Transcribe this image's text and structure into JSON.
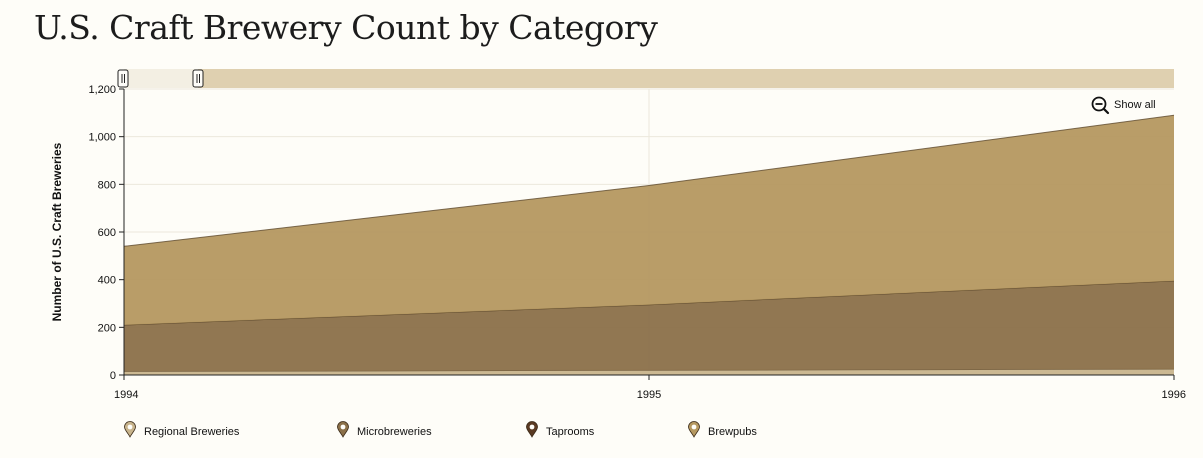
{
  "page": {
    "title": "U.S. Craft Brewery Count by Category"
  },
  "controls": {
    "show_all_label": "Show all"
  },
  "chart_data": {
    "type": "area",
    "stacked": true,
    "title": "U.S. Craft Brewery Count by Category",
    "xlabel": "",
    "ylabel": "Number of U.S. Craft Breweries",
    "x": [
      1994,
      1995,
      1996
    ],
    "x_tick_labels": [
      "1994",
      "1995",
      "1996"
    ],
    "ylim": [
      0,
      1200
    ],
    "y_ticks": [
      0,
      200,
      400,
      600,
      800,
      1000,
      1200
    ],
    "y_tick_labels": [
      "0",
      "200",
      "400",
      "600",
      "800",
      "1,000",
      "1,200"
    ],
    "grid": true,
    "legend_position": "bottom",
    "series": [
      {
        "name": "Regional Breweries",
        "values": [
          15,
          20,
          25
        ],
        "color": "#c8b48c",
        "icon": "hop-icon"
      },
      {
        "name": "Microbreweries",
        "values": [
          195,
          275,
          370
        ],
        "color": "#8b7049",
        "icon": "keg-icon"
      },
      {
        "name": "Taprooms",
        "values": [
          0,
          0,
          0
        ],
        "color": "#5a3a22",
        "icon": "tap-icon"
      },
      {
        "name": "Brewpubs",
        "values": [
          330,
          500,
          695
        ],
        "color": "#b59860",
        "icon": "glass-icon"
      }
    ]
  }
}
